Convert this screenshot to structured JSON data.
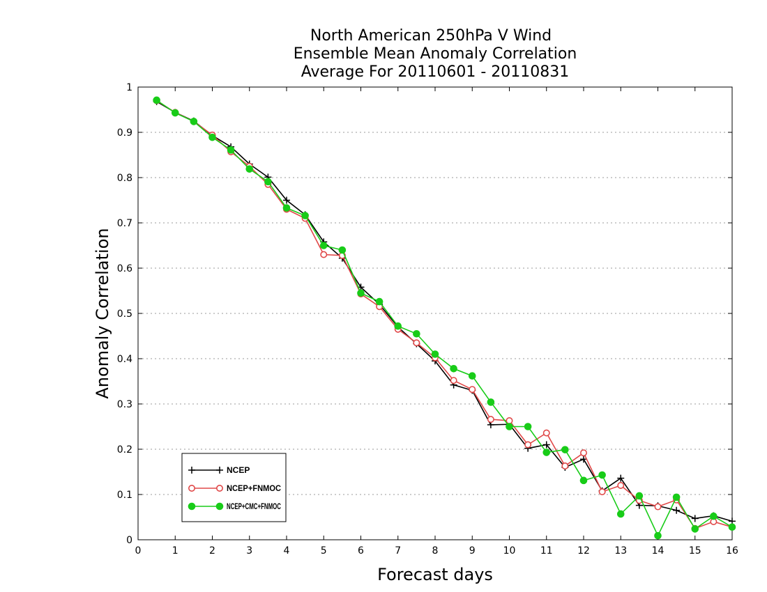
{
  "chart_data": {
    "type": "line",
    "title_lines": [
      "North American 250hPa V Wind",
      "Ensemble Mean Anomaly Correlation",
      "Average For 20110601 - 20110831"
    ],
    "xlabel": "Forecast days",
    "ylabel": "Anomaly Correlation",
    "xlim": [
      0,
      16
    ],
    "ylim": [
      0,
      1
    ],
    "x_ticks": [
      0,
      1,
      2,
      3,
      4,
      5,
      6,
      7,
      8,
      9,
      10,
      11,
      12,
      13,
      14,
      15,
      16
    ],
    "y_ticks": [
      0,
      0.1,
      0.2,
      0.3,
      0.4,
      0.5,
      0.6,
      0.7,
      0.8,
      0.9,
      1
    ],
    "x_tick_labels": [
      "0",
      "1",
      "2",
      "3",
      "4",
      "5",
      "6",
      "7",
      "8",
      "9",
      "10",
      "11",
      "12",
      "13",
      "14",
      "15",
      "16"
    ],
    "y_tick_labels": [
      "0",
      "0.1",
      "0.2",
      "0.3",
      "0.4",
      "0.5",
      "0.6",
      "0.7",
      "0.8",
      "0.9",
      "1"
    ],
    "grid": "horizontal dotted",
    "legend_position": "bottom-left",
    "x": [
      0.5,
      1,
      1.5,
      2,
      2.5,
      3,
      3.5,
      4,
      4.5,
      5,
      5.5,
      6,
      6.5,
      7,
      7.5,
      8,
      8.5,
      9,
      9.5,
      10,
      10.5,
      11,
      11.5,
      12,
      12.5,
      13,
      13.5,
      14,
      14.5,
      15,
      15.5,
      16
    ],
    "series": [
      {
        "name": "NCEP",
        "color": "#000000",
        "marker": "plus",
        "values": [
          0.968,
          0.944,
          0.925,
          0.893,
          0.868,
          0.83,
          0.801,
          0.75,
          0.718,
          0.658,
          0.622,
          0.558,
          0.52,
          0.47,
          0.433,
          0.395,
          0.342,
          0.33,
          0.254,
          0.255,
          0.202,
          0.21,
          0.16,
          0.178,
          0.108,
          0.136,
          0.076,
          0.075,
          0.065,
          0.047,
          0.053,
          0.041
        ]
      },
      {
        "name": "NCEP+FNMOC",
        "color": "#e04848",
        "marker": "open-circle",
        "values": [
          0.97,
          0.944,
          0.924,
          0.894,
          0.857,
          0.825,
          0.785,
          0.73,
          0.71,
          0.63,
          0.628,
          0.543,
          0.515,
          0.465,
          0.435,
          0.402,
          0.352,
          0.332,
          0.266,
          0.263,
          0.21,
          0.236,
          0.163,
          0.192,
          0.106,
          0.12,
          0.087,
          0.073,
          0.088,
          0.025,
          0.04,
          0.028
        ]
      },
      {
        "name": "NCEP+CMC+FNMOC",
        "color": "#18cc18",
        "marker": "filled-circle",
        "values": [
          0.971,
          0.943,
          0.924,
          0.889,
          0.861,
          0.819,
          0.791,
          0.733,
          0.716,
          0.65,
          0.64,
          0.545,
          0.526,
          0.472,
          0.455,
          0.41,
          0.378,
          0.362,
          0.304,
          0.25,
          0.25,
          0.193,
          0.199,
          0.131,
          0.143,
          0.057,
          0.097,
          0.009,
          0.094,
          0.024,
          0.052,
          0.028
        ]
      }
    ]
  }
}
